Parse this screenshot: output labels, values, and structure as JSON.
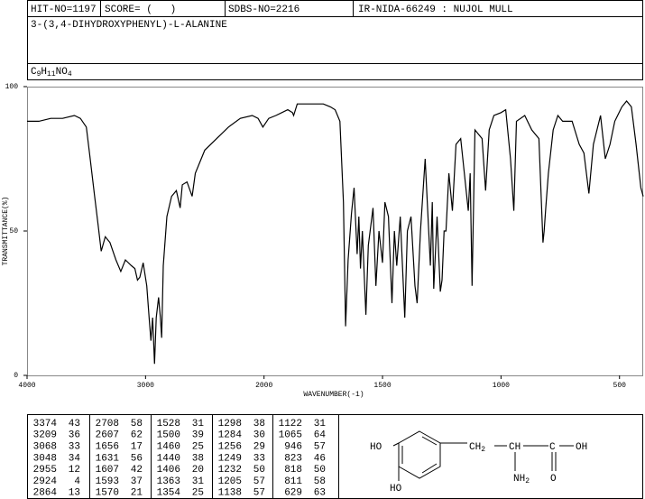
{
  "header": {
    "hit_no": "HIT-NO=1197",
    "score": "SCORE= (   )",
    "sdbs_no": "SDBS-NO=2216",
    "method": "IR-NIDA-66249 : NUJOL MULL",
    "name": "3-(3,4-DIHYDROXYPHENYL)-L-ALANINE",
    "formula": [
      "C",
      "9",
      "H",
      "11",
      "NO",
      "4"
    ]
  },
  "chart_data": {
    "type": "line",
    "xlabel": "WAVENUMBER(-1)",
    "ylabel": "TRANSMITTANCE(%)",
    "xlim": [
      4000,
      400
    ],
    "xticks": [
      4000,
      3000,
      2000,
      1500,
      1000,
      500
    ],
    "xscale": "piecewise",
    "xbreak": 2000,
    "xbreak_ratio": 2,
    "ylim": [
      0,
      100
    ],
    "yticks": [
      0,
      50,
      100
    ],
    "grid": false,
    "x": [
      4000,
      3900,
      3800,
      3700,
      3600,
      3550,
      3500,
      3470,
      3430,
      3400,
      3374,
      3340,
      3300,
      3250,
      3209,
      3170,
      3120,
      3090,
      3068,
      3048,
      3020,
      2990,
      2970,
      2955,
      2940,
      2924,
      2910,
      2890,
      2875,
      2864,
      2850,
      2820,
      2780,
      2740,
      2708,
      2690,
      2650,
      2607,
      2580,
      2500,
      2400,
      2300,
      2200,
      2100,
      2050,
      2010,
      1980,
      1950,
      1900,
      1880,
      1875,
      1860,
      1800,
      1750,
      1720,
      1700,
      1680,
      1665,
      1656,
      1645,
      1631,
      1620,
      1607,
      1600,
      1593,
      1585,
      1570,
      1560,
      1540,
      1528,
      1515,
      1500,
      1490,
      1475,
      1460,
      1450,
      1440,
      1425,
      1406,
      1395,
      1380,
      1363,
      1354,
      1340,
      1320,
      1298,
      1290,
      1284,
      1270,
      1256,
      1249,
      1240,
      1232,
      1220,
      1205,
      1190,
      1170,
      1138,
      1130,
      1122,
      1110,
      1080,
      1065,
      1050,
      1030,
      1000,
      980,
      960,
      946,
      935,
      900,
      870,
      840,
      823,
      818,
      811,
      800,
      780,
      760,
      740,
      700,
      670,
      650,
      629,
      610,
      580,
      560,
      540,
      520,
      490,
      470,
      450,
      430,
      410,
      400
    ],
    "series": [
      {
        "color": "#000000",
        "values": [
          88,
          88,
          89,
          89,
          90,
          89,
          86,
          76,
          62,
          52,
          43,
          48,
          46,
          40,
          36,
          40,
          38,
          37,
          33,
          34,
          39,
          31,
          20,
          12,
          20,
          4,
          20,
          27,
          20,
          13,
          38,
          55,
          62,
          64,
          58,
          66,
          67,
          62,
          70,
          78,
          82,
          86,
          89,
          90,
          89,
          86,
          89,
          90,
          92,
          91,
          90,
          94,
          94,
          94,
          93,
          92,
          88,
          60,
          17,
          40,
          56,
          65,
          42,
          55,
          37,
          50,
          21,
          45,
          58,
          31,
          50,
          39,
          60,
          55,
          25,
          50,
          38,
          55,
          20,
          50,
          55,
          31,
          25,
          50,
          75,
          38,
          60,
          30,
          55,
          29,
          33,
          50,
          50,
          70,
          57,
          80,
          82,
          57,
          70,
          31,
          85,
          82,
          64,
          85,
          90,
          91,
          92,
          75,
          57,
          88,
          90,
          85,
          82,
          46,
          50,
          58,
          70,
          85,
          90,
          88,
          88,
          80,
          77,
          63,
          80,
          90,
          75,
          80,
          88,
          93,
          95,
          93,
          80,
          65,
          62
        ]
      }
    ]
  },
  "peak_table": {
    "columns": [
      [
        [
          3374,
          43
        ],
        [
          3209,
          36
        ],
        [
          3068,
          33
        ],
        [
          3048,
          34
        ],
        [
          2955,
          12
        ],
        [
          2924,
          4
        ],
        [
          2864,
          13
        ]
      ],
      [
        [
          2708,
          58
        ],
        [
          2607,
          62
        ],
        [
          1656,
          17
        ],
        [
          1631,
          56
        ],
        [
          1607,
          42
        ],
        [
          1593,
          37
        ],
        [
          1570,
          21
        ]
      ],
      [
        [
          1528,
          31
        ],
        [
          1500,
          39
        ],
        [
          1460,
          25
        ],
        [
          1440,
          38
        ],
        [
          1406,
          20
        ],
        [
          1363,
          31
        ],
        [
          1354,
          25
        ]
      ],
      [
        [
          1298,
          38
        ],
        [
          1284,
          30
        ],
        [
          1256,
          29
        ],
        [
          1249,
          33
        ],
        [
          1232,
          50
        ],
        [
          1205,
          57
        ],
        [
          1138,
          57
        ]
      ],
      [
        [
          1122,
          31
        ],
        [
          1065,
          64
        ],
        [
          946,
          57
        ],
        [
          823,
          46
        ],
        [
          818,
          50
        ],
        [
          811,
          58
        ],
        [
          629,
          63
        ]
      ]
    ]
  },
  "structure": {
    "ho_top": "HO",
    "ho_bottom": "HO",
    "ch2": [
      "CH",
      "2"
    ],
    "ch": "CH",
    "c": "C",
    "oh": "OH",
    "nh2": [
      "NH",
      "2"
    ],
    "o": "O"
  }
}
